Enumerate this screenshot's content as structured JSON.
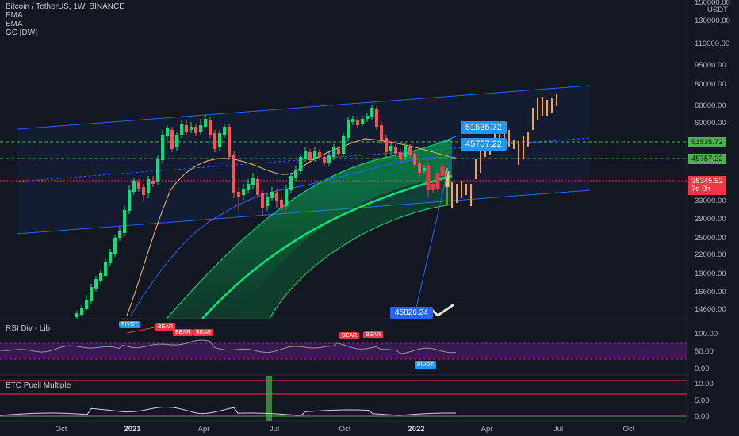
{
  "header": {
    "symbol_line": "Bitcoin / TetherUS, 1W, BINANCE",
    "indicators": [
      "EMA",
      "EMA",
      "GC [DW]"
    ]
  },
  "panes": {
    "rsi_title": "RSI Div - Lib",
    "puell_title": "BTC Puell Multiple"
  },
  "price_axis": {
    "unit": "USDT",
    "labels": [
      "150000.00",
      "130000.00",
      "110000.00",
      "95000.00",
      "80000.00",
      "68000.00",
      "60000.00",
      "51535.72",
      "45757.22",
      "38345.52",
      "33000.00",
      "29000.00",
      "25000.00",
      "22000.00",
      "19000.00",
      "16600.00",
      "14600.00"
    ],
    "price_tag_value": "38345.52",
    "price_tag_countdown": "7d 0h",
    "price_tag_color": "#f23645",
    "level_tag_color": "#4caf50"
  },
  "rsi_axis": {
    "labels": [
      "100.00",
      "50.00",
      "0.00"
    ]
  },
  "puell_axis": {
    "labels": [
      "10.00",
      "5.00",
      "0.00"
    ]
  },
  "time_axis": {
    "labels": [
      {
        "text": "Oct",
        "bold": false
      },
      {
        "text": "2021",
        "bold": true
      },
      {
        "text": "Apr",
        "bold": false
      },
      {
        "text": "Jul",
        "bold": false
      },
      {
        "text": "Oct",
        "bold": false
      },
      {
        "text": "2022",
        "bold": true
      },
      {
        "text": "Apr",
        "bold": false
      },
      {
        "text": "Jul",
        "bold": false
      },
      {
        "text": "Oct",
        "bold": false
      }
    ]
  },
  "callouts": [
    {
      "text": "51535.72",
      "color": "#2196f3"
    },
    {
      "text": "45757.22",
      "color": "#2196f3"
    },
    {
      "text": "45826.24",
      "color": "#2962ff"
    }
  ],
  "rsi_badges": [
    {
      "text": "PIVOT",
      "color": "#2196f3"
    },
    {
      "text": "BEAR",
      "color": "#f23645"
    },
    {
      "text": "BEAR",
      "color": "#f23645"
    },
    {
      "text": "BEAR",
      "color": "#f23645"
    },
    {
      "text": "BEAR",
      "color": "#f23645"
    },
    {
      "text": "BEAR",
      "color": "#f23645"
    },
    {
      "text": "PIVOT",
      "color": "#2196f3"
    }
  ],
  "colors": {
    "bull_candle": "#00e676",
    "bear_candle": "#ff5252",
    "projection": "#ff9f43",
    "channel": "#2962ff",
    "ema_fast": "#f5c26b",
    "ema_slow": "#2962ff",
    "cloud": "#00c853",
    "rsi_band": "#7b1fa2"
  }
}
